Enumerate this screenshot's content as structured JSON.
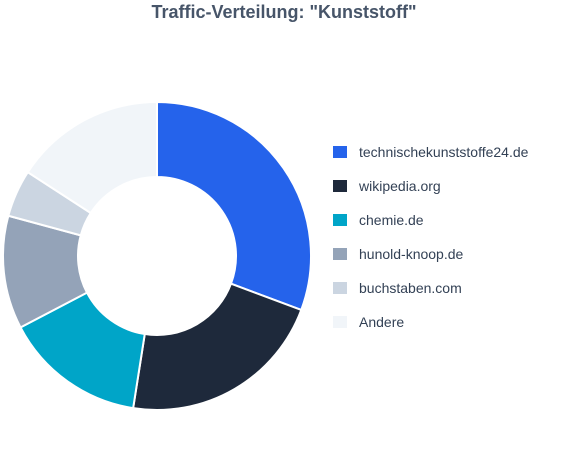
{
  "chart_data": {
    "type": "pie",
    "style": "donut",
    "title": "Traffic-Verteilung: \"Kunststoff\"",
    "legend_position": "right",
    "slices": [
      {
        "label": "technischekunststoffe24.de",
        "value": 31,
        "color": "#2563eb"
      },
      {
        "label": "wikipedia.org",
        "value": 22,
        "color": "#1e293b"
      },
      {
        "label": "chemie.de",
        "value": 15,
        "color": "#00a5c8"
      },
      {
        "label": "hunold-knoop.de",
        "value": 12,
        "color": "#94a3b8"
      },
      {
        "label": "buchstaben.com",
        "value": 5,
        "color": "#cbd5e1"
      },
      {
        "label": "Andere",
        "value": 16,
        "color": "#f1f5f9"
      }
    ]
  }
}
